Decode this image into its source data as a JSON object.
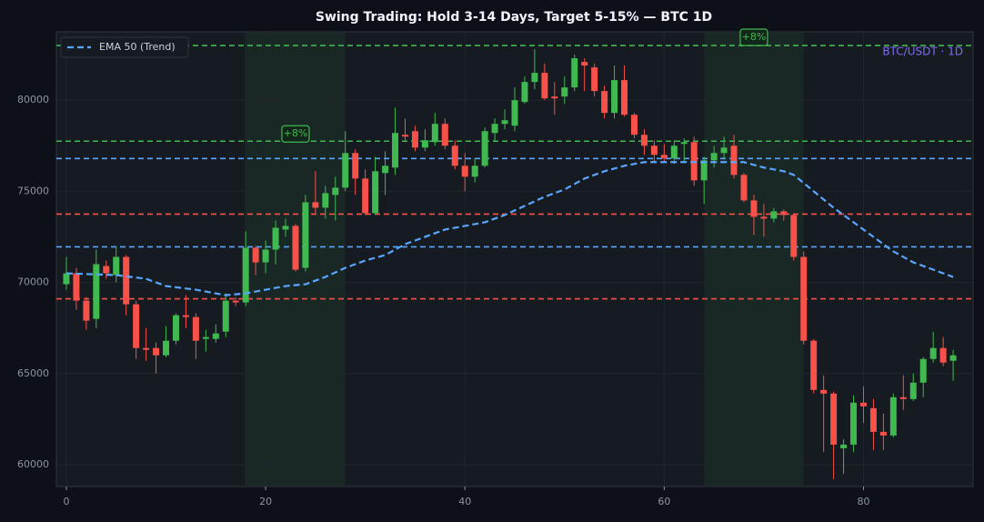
{
  "chart_data": {
    "type": "candlestick",
    "title": "Swing Trading: Hold 3-14 Days, Target 5-15% — BTC 1D",
    "watermark": "BTC/USDT · 1D",
    "xlim": [
      -1,
      91
    ],
    "ylim": [
      58800,
      83750
    ],
    "xticks": [
      0,
      20,
      40,
      60,
      80
    ],
    "yticks": [
      60000,
      65000,
      70000,
      75000,
      80000
    ],
    "grid": true,
    "legend": "upper left",
    "up_color": "#3fb950",
    "down_color": "#f85149",
    "x": [
      0,
      1,
      2,
      3,
      4,
      5,
      6,
      7,
      8,
      9,
      10,
      11,
      12,
      13,
      14,
      15,
      16,
      17,
      18,
      19,
      20,
      21,
      22,
      23,
      24,
      25,
      26,
      27,
      28,
      29,
      30,
      31,
      32,
      33,
      34,
      35,
      36,
      37,
      38,
      39,
      40,
      41,
      42,
      43,
      44,
      45,
      46,
      47,
      48,
      49,
      50,
      51,
      52,
      53,
      54,
      55,
      56,
      57,
      58,
      59,
      60,
      61,
      62,
      63,
      64,
      65,
      66,
      67,
      68,
      69,
      70,
      71,
      72,
      73,
      74,
      75,
      76,
      77,
      78,
      79,
      80,
      81,
      82,
      83,
      84,
      85,
      86,
      87,
      88,
      89
    ],
    "open": [
      69900,
      70500,
      69000,
      68000,
      70900,
      70400,
      71400,
      68800,
      66400,
      66400,
      66000,
      66800,
      68200,
      68100,
      66900,
      66900,
      67300,
      69000,
      68900,
      71900,
      71100,
      71800,
      72900,
      73100,
      70800,
      74400,
      74100,
      74800,
      75200,
      77100,
      75700,
      73800,
      76000,
      76300,
      78100,
      78300,
      77400,
      77700,
      78700,
      77500,
      76400,
      75800,
      76400,
      78200,
      78700,
      78600,
      79900,
      81000,
      81500,
      80200,
      80200,
      80700,
      82100,
      81800,
      80500,
      79300,
      81100,
      79200,
      78100,
      77500,
      77000,
      76800,
      77600,
      77700,
      75600,
      76700,
      77100,
      77500,
      75900,
      74500,
      73600,
      73500,
      73900,
      73700,
      71400,
      66800,
      64100,
      63900,
      60900,
      61100,
      63400,
      63100,
      61800,
      61600,
      63700,
      63600,
      64500,
      65800,
      66400,
      65700
    ],
    "high": [
      71400,
      70800,
      69200,
      71800,
      71200,
      72000,
      71500,
      69000,
      67500,
      66700,
      67600,
      68300,
      69300,
      68300,
      67400,
      67700,
      69400,
      69200,
      72800,
      72000,
      72300,
      73400,
      73500,
      73200,
      74800,
      76100,
      75300,
      75800,
      78300,
      77300,
      76200,
      76900,
      77200,
      79600,
      79000,
      78600,
      78400,
      79300,
      79000,
      77800,
      77100,
      76800,
      78500,
      79000,
      79500,
      80700,
      81300,
      82800,
      82000,
      81000,
      81300,
      82500,
      82300,
      82000,
      80800,
      81900,
      81900,
      79300,
      78400,
      77800,
      77600,
      77800,
      77900,
      78000,
      76900,
      77500,
      78000,
      78100,
      76000,
      74800,
      74300,
      74100,
      74000,
      73800,
      71700,
      66900,
      64900,
      64000,
      61400,
      63800,
      64300,
      63600,
      62800,
      63900,
      64900,
      65000,
      65900,
      67300,
      67000,
      66300
    ],
    "low": [
      69600,
      68500,
      67400,
      67500,
      70200,
      70000,
      68200,
      65800,
      65700,
      65000,
      65900,
      66600,
      67500,
      65800,
      66200,
      66700,
      67000,
      68700,
      68700,
      70400,
      70500,
      71000,
      72500,
      70600,
      70600,
      73800,
      73500,
      73400,
      75000,
      74800,
      73700,
      73700,
      74800,
      75900,
      77700,
      77200,
      77200,
      77500,
      77300,
      76200,
      75000,
      75500,
      76300,
      77700,
      78400,
      78300,
      79800,
      80600,
      80000,
      79200,
      79800,
      80500,
      80500,
      80200,
      79000,
      79000,
      79100,
      77900,
      77000,
      76600,
      76600,
      76500,
      76600,
      75300,
      74300,
      76300,
      76800,
      75700,
      74400,
      72600,
      72500,
      73300,
      73400,
      71200,
      66600,
      63900,
      60700,
      59200,
      59500,
      60700,
      62300,
      60800,
      60800,
      61500,
      63000,
      63500,
      63700,
      65600,
      65400,
      64600
    ],
    "close": [
      70500,
      69000,
      67900,
      71000,
      70500,
      71400,
      68800,
      66400,
      66300,
      66000,
      66800,
      68200,
      68100,
      66800,
      67000,
      67200,
      69000,
      68900,
      71900,
      71100,
      71800,
      73000,
      73100,
      70700,
      74400,
      74100,
      74900,
      75200,
      77100,
      75700,
      73800,
      76100,
      76400,
      78200,
      78000,
      77400,
      77800,
      78700,
      77500,
      76400,
      75800,
      76400,
      78300,
      78700,
      78900,
      80000,
      81000,
      81500,
      80100,
      80100,
      80700,
      82300,
      81900,
      80500,
      79300,
      81100,
      79200,
      78100,
      77500,
      77000,
      76800,
      77500,
      77700,
      75600,
      76700,
      77100,
      77400,
      75900,
      74500,
      73600,
      73500,
      73900,
      73700,
      71400,
      66800,
      64100,
      63900,
      61100,
      61100,
      63400,
      63200,
      61800,
      61600,
      63700,
      63600,
      64500,
      65800,
      66400,
      65600,
      66000
    ],
    "ema": {
      "name": "EMA 50 (Trend)",
      "color": "#58a6ff",
      "x": [
        0,
        5,
        8,
        10,
        13,
        16,
        18,
        20,
        22,
        24,
        26,
        28,
        30,
        32,
        34,
        36,
        38,
        40,
        42,
        44,
        46,
        48,
        50,
        52,
        54,
        56,
        58,
        60,
        62,
        64,
        66,
        68,
        70,
        72,
        73,
        75,
        77,
        79,
        81,
        83,
        85,
        87,
        89
      ],
      "values": [
        70500,
        70400,
        70200,
        69800,
        69600,
        69300,
        69400,
        69600,
        69800,
        69900,
        70300,
        70800,
        71200,
        71500,
        72100,
        72500,
        72900,
        73100,
        73300,
        73700,
        74200,
        74700,
        75100,
        75700,
        76100,
        76400,
        76600,
        76600,
        76600,
        76600,
        76600,
        76600,
        76300,
        76100,
        75900,
        75000,
        74100,
        73300,
        72500,
        71700,
        71100,
        70700,
        70300
      ]
    },
    "hlines": [
      {
        "value": 83000,
        "color": "#3fb950"
      },
      {
        "value": 77750,
        "color": "#3fb950"
      },
      {
        "value": 76800,
        "color": "#58a6ff"
      },
      {
        "value": 73750,
        "color": "#f85149"
      },
      {
        "value": 71950,
        "color": "#58a6ff"
      },
      {
        "value": 69100,
        "color": "#f85149"
      }
    ],
    "regions": [
      {
        "x0": 17.9,
        "x1": 28
      },
      {
        "x0": 64,
        "x1": 74
      }
    ],
    "annotations": [
      {
        "text": "+8%",
        "x": 23,
        "y": 78150
      },
      {
        "text": "+8%",
        "x": 69,
        "y": 83450
      }
    ]
  }
}
